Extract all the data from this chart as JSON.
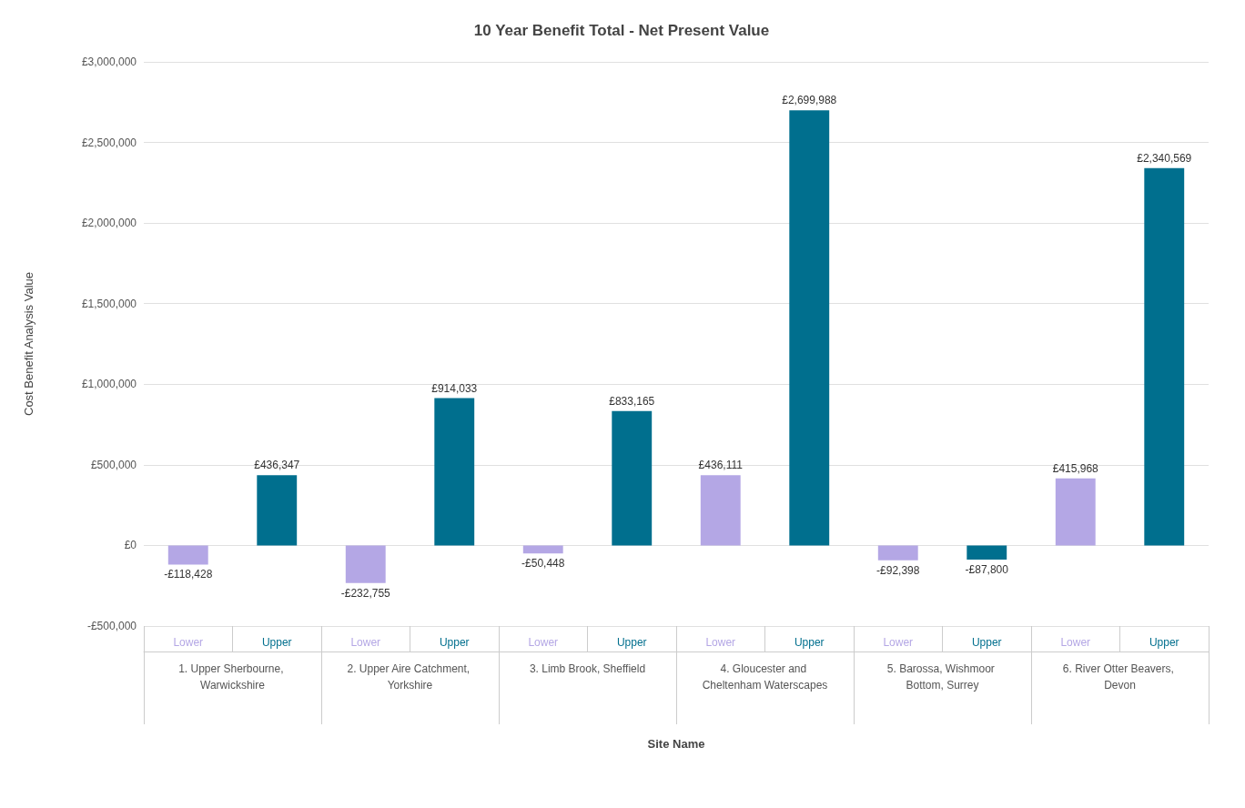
{
  "chart_data": {
    "type": "bar",
    "title": "10 Year Benefit Total - Net Present Value",
    "xlabel": "Site Name",
    "ylabel": "Cost Benefit Analysis Value",
    "categories": [
      "1. Upper Sherbourne, Warwickshire",
      "2. Upper Aire Catchment, Yorkshire",
      "3. Limb Brook, Sheffield",
      "4. Gloucester and Cheltenham Waterscapes",
      "5. Barossa, Wishmoor Bottom, Surrey",
      "6. River Otter Beavers, Devon"
    ],
    "series": [
      {
        "name": "Lower",
        "color": "#b4a7e5",
        "values": [
          -118428,
          -232755,
          -50448,
          436111,
          -92398,
          415968
        ],
        "value_labels": [
          "-£118,428",
          "-£232,755",
          "-£50,448",
          "£436,111",
          "-£92,398",
          "£415,968"
        ]
      },
      {
        "name": "Upper",
        "color": "#006f8e",
        "values": [
          436347,
          914033,
          833165,
          2699988,
          -87800,
          2340569
        ],
        "value_labels": [
          "£436,347",
          "£914,033",
          "£833,165",
          "£2,699,988",
          "-£87,800",
          "£2,340,569"
        ]
      }
    ],
    "ylim": [
      -500000,
      3000000
    ],
    "yticks": [
      {
        "value": -500000,
        "label": "-£500,000"
      },
      {
        "value": 0,
        "label": "£0"
      },
      {
        "value": 500000,
        "label": "£500,000"
      },
      {
        "value": 1000000,
        "label": "£1,000,000"
      },
      {
        "value": 1500000,
        "label": "£1,500,000"
      },
      {
        "value": 2000000,
        "label": "£2,000,000"
      },
      {
        "value": 2500000,
        "label": "£2,500,000"
      },
      {
        "value": 3000000,
        "label": "£3,000,000"
      }
    ],
    "grid": "y",
    "legend": false
  }
}
